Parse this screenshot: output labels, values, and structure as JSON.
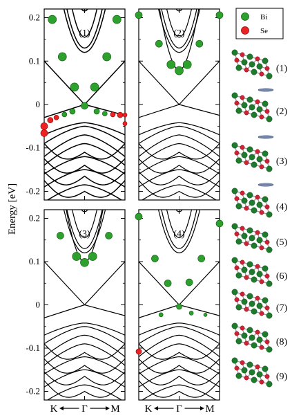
{
  "chart_data": {
    "type": "scatter",
    "ylabel": "Energy [eV]",
    "ylim": [
      -0.22,
      0.22
    ],
    "yticks": [
      "0.2",
      "0.1",
      "0",
      "-0.1",
      "-0.2"
    ],
    "xticks": [
      "K",
      "Γ",
      "M"
    ],
    "legend": {
      "placement": "top-right",
      "entries": [
        {
          "name": "Bi",
          "color": "#2ea02e"
        },
        {
          "name": "Se",
          "color": "#ee2222"
        }
      ]
    },
    "panels": [
      {
        "label": "(1)",
        "points": [
          {
            "x": -0.8,
            "y": 0.196,
            "e": "Bi",
            "s": 6
          },
          {
            "x": 0.8,
            "y": 0.196,
            "e": "Bi",
            "s": 6
          },
          {
            "x": -0.55,
            "y": 0.11,
            "e": "Bi",
            "s": 6
          },
          {
            "x": 0.55,
            "y": 0.11,
            "e": "Bi",
            "s": 6
          },
          {
            "x": -0.25,
            "y": 0.04,
            "e": "Bi",
            "s": 6
          },
          {
            "x": 0.25,
            "y": 0.04,
            "e": "Bi",
            "s": 6
          },
          {
            "x": 0.0,
            "y": -0.003,
            "e": "Bi",
            "s": 5
          },
          {
            "x": -0.3,
            "y": -0.016,
            "e": "Bi",
            "s": 4
          },
          {
            "x": 0.3,
            "y": -0.016,
            "e": "Bi",
            "s": 4
          },
          {
            "x": -0.5,
            "y": -0.023,
            "e": "Bi",
            "s": 3.5
          },
          {
            "x": 0.5,
            "y": -0.021,
            "e": "Bi",
            "s": 3.5
          },
          {
            "x": -0.7,
            "y": -0.03,
            "e": "Se",
            "s": 3.5
          },
          {
            "x": 0.7,
            "y": -0.023,
            "e": "Se",
            "s": 3.5
          },
          {
            "x": -0.85,
            "y": -0.036,
            "e": "Se",
            "s": 4
          },
          {
            "x": 0.88,
            "y": -0.024,
            "e": "Se",
            "s": 4
          },
          {
            "x": -1.0,
            "y": -0.05,
            "e": "Se",
            "s": 5
          },
          {
            "x": -1.0,
            "y": -0.066,
            "e": "Se",
            "s": 5
          },
          {
            "x": 1.0,
            "y": -0.024,
            "e": "Se",
            "s": 3
          },
          {
            "x": 1.0,
            "y": -0.044,
            "e": "Se",
            "s": 3
          }
        ]
      },
      {
        "label": "(2)",
        "points": [
          {
            "x": -1.0,
            "y": 0.206,
            "e": "Bi",
            "s": 5
          },
          {
            "x": 1.0,
            "y": 0.206,
            "e": "Bi",
            "s": 5
          },
          {
            "x": -0.5,
            "y": 0.14,
            "e": "Bi",
            "s": 5
          },
          {
            "x": 0.5,
            "y": 0.14,
            "e": "Bi",
            "s": 5
          },
          {
            "x": -0.2,
            "y": 0.092,
            "e": "Bi",
            "s": 6
          },
          {
            "x": 0.2,
            "y": 0.092,
            "e": "Bi",
            "s": 6
          },
          {
            "x": 0.0,
            "y": 0.078,
            "e": "Bi",
            "s": 6
          }
        ]
      },
      {
        "label": "(3)",
        "points": [
          {
            "x": -0.6,
            "y": 0.16,
            "e": "Bi",
            "s": 5
          },
          {
            "x": 0.6,
            "y": 0.16,
            "e": "Bi",
            "s": 5
          },
          {
            "x": -0.2,
            "y": 0.112,
            "e": "Bi",
            "s": 6
          },
          {
            "x": 0.2,
            "y": 0.112,
            "e": "Bi",
            "s": 6
          },
          {
            "x": 0.0,
            "y": 0.098,
            "e": "Bi",
            "s": 6
          }
        ]
      },
      {
        "label": "(4)",
        "points": [
          {
            "x": -1.0,
            "y": 0.204,
            "e": "Bi",
            "s": 5
          },
          {
            "x": 1.0,
            "y": 0.188,
            "e": "Bi",
            "s": 5
          },
          {
            "x": -0.6,
            "y": 0.107,
            "e": "Bi",
            "s": 5
          },
          {
            "x": 0.55,
            "y": 0.107,
            "e": "Bi",
            "s": 5
          },
          {
            "x": -0.28,
            "y": 0.05,
            "e": "Bi",
            "s": 5
          },
          {
            "x": 0.25,
            "y": 0.052,
            "e": "Bi",
            "s": 5
          },
          {
            "x": 0.0,
            "y": -0.004,
            "e": "Bi",
            "s": 4
          },
          {
            "x": -0.45,
            "y": -0.023,
            "e": "Bi",
            "s": 3
          },
          {
            "x": 0.3,
            "y": -0.019,
            "e": "Bi",
            "s": 3
          },
          {
            "x": 0.65,
            "y": -0.023,
            "e": "Bi",
            "s": 2.5
          },
          {
            "x": -1.0,
            "y": -0.108,
            "e": "Se",
            "s": 4
          }
        ]
      }
    ]
  },
  "structure_labels": [
    "(1)",
    "(2)",
    "(3)",
    "(4)",
    "(5)",
    "(6)",
    "(7)",
    "(8)",
    "(9)"
  ]
}
